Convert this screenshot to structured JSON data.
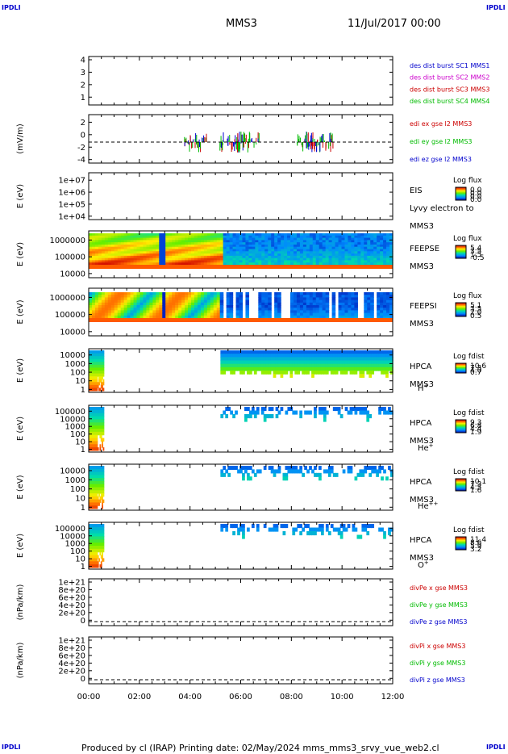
{
  "corner_label": "IPDLI",
  "header": {
    "spacecraft": "MMS3",
    "datetime": "11/Jul/2017 00:00"
  },
  "footer": {
    "text": "Produced by cl (IRAP)   Printing date: 02/May/2024   mms_mms3_srvy_vue_web2.cl"
  },
  "chart_data": {
    "type": "heatmap",
    "x_axis": {
      "ticks": [
        "00:00",
        "02:00",
        "04:00",
        "06:00",
        "08:00",
        "10:00",
        "12:00"
      ],
      "range_hours": [
        0,
        12
      ]
    },
    "panels": [
      {
        "id": "des-dist",
        "type": "line",
        "ylabel": "",
        "yticks": [
          "1",
          "2",
          "3",
          "4"
        ],
        "legend": [
          {
            "label": "des dist burst SC1 MMS1",
            "color": "#0000cc"
          },
          {
            "label": "des dist burst SC2 MMS2",
            "color": "#cc00cc"
          },
          {
            "label": "des dist burst SC3 MMS3",
            "color": "#cc0000"
          },
          {
            "label": "des dist burst SC4 MMS4",
            "color": "#00bb00"
          }
        ]
      },
      {
        "id": "edi-e",
        "type": "line",
        "ylabel": "(mV/m)",
        "yticks": [
          "-4",
          "-2",
          "0",
          "2"
        ],
        "legend": [
          {
            "label": "edi ex gse l2 MMS3",
            "color": "#cc0000"
          },
          {
            "label": "edi ey gse l2 MMS3",
            "color": "#00bb00"
          },
          {
            "label": "edi ez gse l2 MMS3",
            "color": "#0000cc"
          }
        ]
      },
      {
        "id": "eis",
        "type": "heatmap",
        "ylabel": "E (eV)",
        "yticks": [
          "1e+04",
          "1e+05",
          "1e+06",
          "1e+07"
        ],
        "right_labels": [
          "EIS",
          "Lyvy electron to",
          "MMS3"
        ],
        "colorbar": {
          "title": "Log flux",
          "ticks": [
            "0.0",
            "0.0",
            "0.0",
            "0.0"
          ]
        }
      },
      {
        "id": "feepse",
        "type": "heatmap",
        "ylabel": "E (eV)",
        "yticks": [
          "10000",
          "100000",
          "1000000"
        ],
        "right_labels": [
          "FEEPSE",
          "MMS3"
        ],
        "colorbar": {
          "title": "Log flux",
          "ticks": [
            "5.4",
            "3.5",
            "1.5",
            "-0.5"
          ]
        }
      },
      {
        "id": "feepsi",
        "type": "heatmap",
        "ylabel": "E (eV)",
        "yticks": [
          "10000",
          "100000",
          "1000000"
        ],
        "right_labels": [
          "FEEPSI",
          "MMS3"
        ],
        "colorbar": {
          "title": "Log flux",
          "ticks": [
            "5.1",
            "3.5",
            "2.0",
            "0.5"
          ]
        }
      },
      {
        "id": "hpca-h",
        "type": "heatmap",
        "ylabel": "E (eV)",
        "yticks": [
          "1",
          "10",
          "100",
          "1000",
          "10000"
        ],
        "right_labels": [
          "HPCA",
          "MMS3"
        ],
        "species": "H",
        "species_sup": "+",
        "colorbar": {
          "title": "Log fdist",
          "ticks": [
            "10.6",
            "7.3",
            "4.0",
            "0.7"
          ]
        }
      },
      {
        "id": "hpca-he",
        "type": "heatmap",
        "ylabel": "E (eV)",
        "yticks": [
          "1",
          "10",
          "100",
          "1000",
          "10000",
          "100000"
        ],
        "right_labels": [
          "HPCA",
          "MMS3"
        ],
        "species": "He",
        "species_sup": "+",
        "colorbar": {
          "title": "Log fdist",
          "ticks": [
            "9.3",
            "6.8",
            "4.4",
            "1.9"
          ]
        }
      },
      {
        "id": "hpca-hepp",
        "type": "heatmap",
        "ylabel": "E (eV)",
        "yticks": [
          "1",
          "10",
          "100",
          "1000",
          "10000"
        ],
        "right_labels": [
          "HPCA",
          "MMS3"
        ],
        "species": "He",
        "species_sup": "++",
        "colorbar": {
          "title": "Log fdist",
          "ticks": [
            "10.1",
            "7.3",
            "4.5",
            "1.6"
          ]
        }
      },
      {
        "id": "hpca-o",
        "type": "heatmap",
        "ylabel": "E (eV)",
        "yticks": [
          "1",
          "10",
          "100",
          "1000",
          "10000",
          "100000"
        ],
        "right_labels": [
          "HPCA",
          "MMS3"
        ],
        "species": "O",
        "species_sup": "+",
        "colorbar": {
          "title": "Log fdist",
          "ticks": [
            "11.4",
            "8.6",
            "5.9",
            "3.2"
          ]
        }
      },
      {
        "id": "divpe",
        "type": "line",
        "ylabel": "(nPa/km)",
        "yticks": [
          "0",
          "2e+20",
          "4e+20",
          "6e+20",
          "8e+20",
          "1e+21"
        ],
        "legend": [
          {
            "label": "divPe x gse MMS3",
            "color": "#cc0000"
          },
          {
            "label": "divPe y gse MMS3",
            "color": "#00bb00"
          },
          {
            "label": "divPe z gse MMS3",
            "color": "#0000cc"
          }
        ]
      },
      {
        "id": "divpi",
        "type": "line",
        "ylabel": "(nPa/km)",
        "yticks": [
          "0",
          "2e+20",
          "4e+20",
          "6e+20",
          "8e+20",
          "1e+21"
        ],
        "legend": [
          {
            "label": "divPi x gse MMS3",
            "color": "#cc0000"
          },
          {
            "label": "divPi y gse MMS3",
            "color": "#00bb00"
          },
          {
            "label": "divPi z gse MMS3",
            "color": "#0000cc"
          }
        ]
      }
    ]
  }
}
